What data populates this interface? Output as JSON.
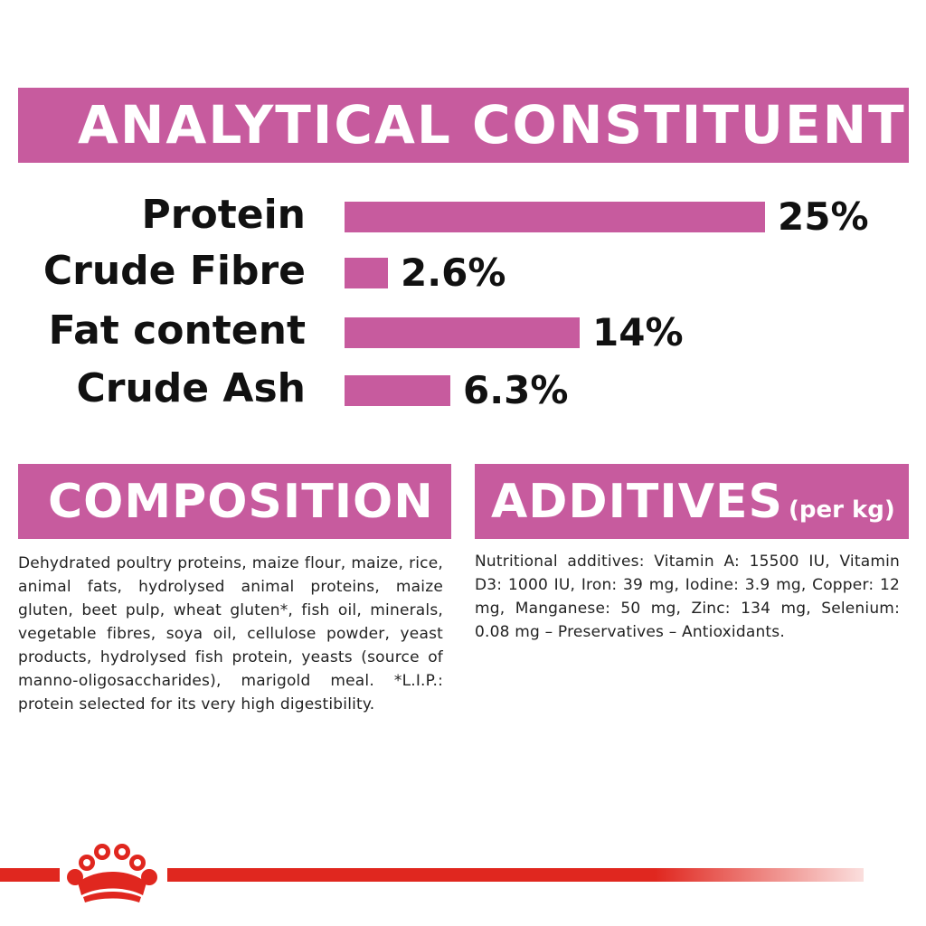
{
  "analytical": {
    "title": "ANALYTICAL CONSTITUENTS",
    "rows": [
      {
        "label": "Protein",
        "value_text": "25%",
        "value": 25
      },
      {
        "label": "Crude Fibre",
        "value_text": "2.6%",
        "value": 2.6
      },
      {
        "label": "Fat content",
        "value_text": "14%",
        "value": 14
      },
      {
        "label": "Crude Ash",
        "value_text": "6.3%",
        "value": 6.3
      }
    ]
  },
  "composition": {
    "title": "COMPOSITION",
    "text": "Dehydrated poultry proteins, maize flour, maize, rice, animal fats, hydrolysed animal proteins, maize gluten, beet pulp, wheat gluten*, fish oil, minerals, vegetable fibres, soya oil, cellulose powder, yeast products, hydrolysed fish protein, yeasts (source of manno-oligosaccharides), marigold meal. *L.I.P.: protein selected for its very high digestibility."
  },
  "additives": {
    "title": "ADDITIVES",
    "subtitle": "(per kg)",
    "text": "Nutritional additives: Vitamin A: 15500 IU, Vitamin D3: 1000 IU, Iron: 39 mg, Iodine: 3.9 mg, Copper: 12 mg, Manganese: 50 mg, Zinc: 134 mg, Selenium: 0.08 mg – Preservatives – Antioxidants."
  },
  "footer": {
    "logo_icon": "crown-icon"
  },
  "colors": {
    "accent": "#c75b9e",
    "brand_red": "#e0271f",
    "text": "#111111"
  }
}
